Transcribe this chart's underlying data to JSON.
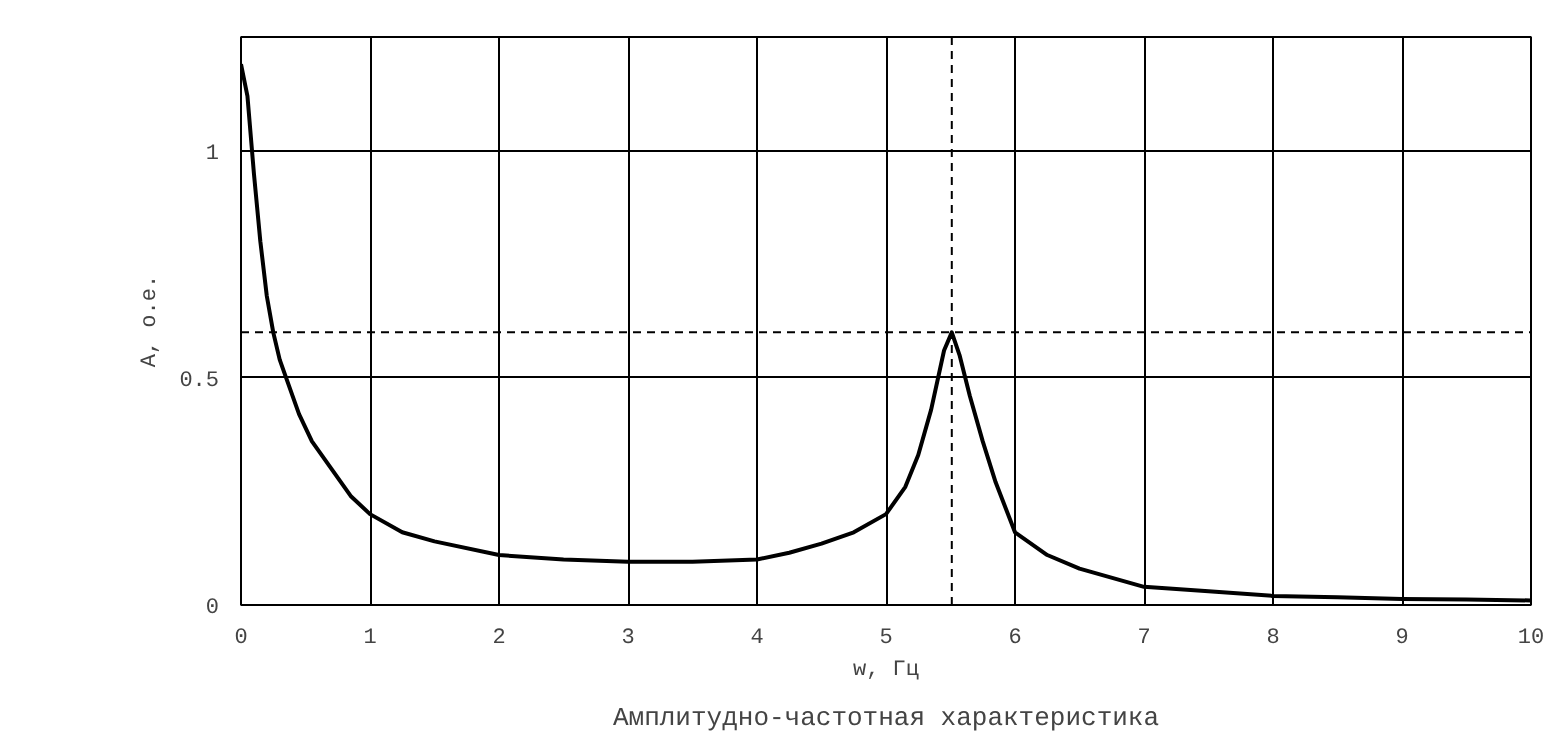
{
  "chart_data": {
    "type": "line",
    "title": "Амплитудно-частотная характеристика",
    "xlabel": "w, Гц",
    "ylabel": "A, o.e.",
    "series": [
      {
        "color": "#000000",
        "x": [
          0,
          0.05,
          0.1,
          0.15,
          0.2,
          0.25,
          0.3,
          0.35,
          0.45,
          0.55,
          0.7,
          0.85,
          1,
          1.25,
          1.5,
          2,
          2.5,
          3,
          3.5,
          4,
          4.25,
          4.5,
          4.75,
          5,
          5.15,
          5.25,
          5.35,
          5.45,
          5.51,
          5.57,
          5.65,
          5.75,
          5.85,
          6,
          6.25,
          6.5,
          7,
          7.5,
          8,
          8.5,
          9,
          9.5,
          10
        ],
        "values": [
          1.19,
          1.12,
          0.95,
          0.8,
          0.68,
          0.6,
          0.54,
          0.5,
          0.42,
          0.36,
          0.3,
          0.24,
          0.2,
          0.16,
          0.14,
          0.11,
          0.1,
          0.095,
          0.095,
          0.1,
          0.115,
          0.135,
          0.16,
          0.2,
          0.26,
          0.33,
          0.43,
          0.56,
          0.6,
          0.55,
          0.46,
          0.36,
          0.27,
          0.16,
          0.11,
          0.08,
          0.04,
          0.03,
          0.02,
          0.017,
          0.013,
          0.012,
          0.01
        ]
      }
    ],
    "xlim": [
      0,
      10
    ],
    "ylim": [
      0,
      1.25
    ],
    "xticks": [
      0,
      1,
      2,
      3,
      4,
      5,
      6,
      7,
      8,
      9,
      10
    ],
    "yticks": [
      0,
      0.5,
      1
    ],
    "grid": true,
    "line_style": "solid",
    "ref_lines": [
      {
        "axis": "x",
        "value": 5.51,
        "line_style": "dashed"
      },
      {
        "axis": "y",
        "value": 0.6,
        "line_style": "dashed"
      }
    ]
  }
}
